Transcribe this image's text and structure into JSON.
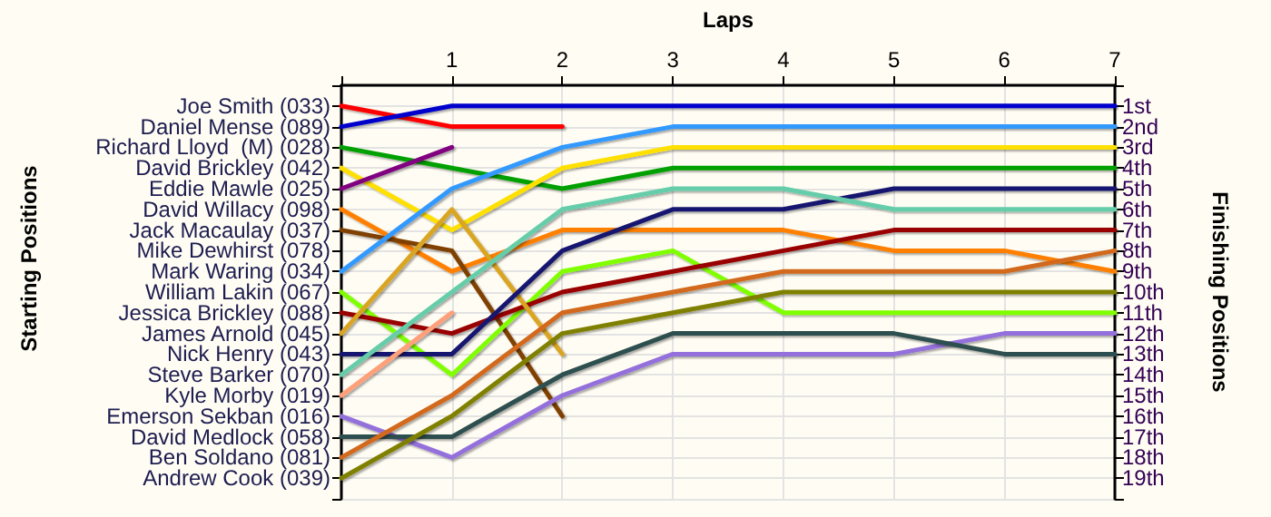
{
  "chart_data": {
    "type": "line",
    "xlabel": "Laps",
    "annotations": [
      "Starting Positions"
    ],
    "y2label": "Finishing Positions",
    "x": [
      0,
      1,
      2,
      3,
      4,
      5,
      6,
      7
    ],
    "xlim": [
      0,
      7
    ],
    "xticks": [
      {
        "value": 0,
        "label": null
      },
      1,
      2,
      3,
      4,
      5,
      6,
      7
    ],
    "y_categories": [
      "Joe Smith (033)",
      "Daniel Mense (089)",
      "Richard Lloyd  (M) (028)",
      "David Brickley (042)",
      "Eddie Mawle (025)",
      "David Willacy (098)",
      "Jack Macaulay (037)",
      "Mike Dewhirst (078)",
      "Mark Waring (034)",
      "William Lakin (067)",
      "Jessica Brickley (088)",
      "James Arnold (045)",
      "Nick Henry (043)",
      "Steve Barker (070)",
      "Kyle Morby (019)",
      "Emerson Sekban (016)",
      "David Medlock (058)",
      "Ben Soldano (081)",
      "Andrew Cook (039)"
    ],
    "y2lim": [
      20,
      0
    ],
    "y2ticks": [
      {
        "value": 0,
        "label": null
      },
      {
        "value": 1,
        "label": "1st"
      },
      {
        "value": 2,
        "label": "2nd"
      },
      {
        "value": 3,
        "label": "3rd"
      },
      {
        "value": 4,
        "label": "4th"
      },
      {
        "value": 5,
        "label": "5th"
      },
      {
        "value": 6,
        "label": "6th"
      },
      {
        "value": 7,
        "label": "7th"
      },
      {
        "value": 8,
        "label": "8th"
      },
      {
        "value": 9,
        "label": "9th"
      },
      {
        "value": 10,
        "label": "10th"
      },
      {
        "value": 11,
        "label": "11th"
      },
      {
        "value": 12,
        "label": "12th"
      },
      {
        "value": 13,
        "label": "13th"
      },
      {
        "value": 14,
        "label": "14th"
      },
      {
        "value": 15,
        "label": "15th"
      },
      {
        "value": 16,
        "label": "16th"
      },
      {
        "value": 17,
        "label": "17th"
      },
      {
        "value": 18,
        "label": "18th"
      },
      {
        "value": 19,
        "label": "19th"
      },
      {
        "value": 20,
        "label": null
      }
    ],
    "grid": true,
    "marker": "none",
    "line_style": "solid",
    "series": [
      {
        "axis": "y2",
        "color": "#ff0000",
        "values": [
          1,
          2,
          2,
          null,
          null,
          null,
          null,
          null
        ]
      },
      {
        "axis": "y2",
        "color": "#0000cc",
        "values": [
          2,
          1,
          1,
          1,
          1,
          1,
          1,
          1
        ]
      },
      {
        "axis": "y2",
        "color": "#00a000",
        "values": [
          3,
          4,
          5,
          4,
          4,
          4,
          4,
          4
        ]
      },
      {
        "axis": "y2",
        "color": "#ffe000",
        "values": [
          4,
          7,
          4,
          3,
          3,
          3,
          3,
          3
        ]
      },
      {
        "axis": "y2",
        "color": "#800080",
        "values": [
          5,
          3,
          null,
          null,
          null,
          null,
          null,
          null
        ]
      },
      {
        "axis": "y2",
        "color": "#ff8000",
        "values": [
          6,
          9,
          7,
          7,
          7,
          8,
          8,
          9
        ]
      },
      {
        "axis": "y2",
        "color": "#804000",
        "values": [
          7,
          8,
          16,
          null,
          null,
          null,
          null,
          null
        ]
      },
      {
        "axis": "y2",
        "color": "#3399ff",
        "values": [
          9,
          5,
          3,
          2,
          2,
          2,
          2,
          2
        ]
      },
      {
        "axis": "y2",
        "color": "#80ff00",
        "values": [
          10,
          14,
          9,
          8,
          11,
          11,
          11,
          11
        ]
      },
      {
        "axis": "y2",
        "color": "#990000",
        "values": [
          11,
          12,
          10,
          9,
          8,
          7,
          7,
          7
        ]
      },
      {
        "axis": "y2",
        "color": "#daa520",
        "values": [
          12,
          6,
          13,
          null,
          null,
          null,
          null,
          null
        ]
      },
      {
        "axis": "y2",
        "color": "#191970",
        "values": [
          13,
          13,
          8,
          6,
          6,
          5,
          5,
          5
        ]
      },
      {
        "axis": "y2",
        "color": "#66cdaa",
        "values": [
          14,
          10,
          6,
          5,
          5,
          6,
          6,
          6
        ]
      },
      {
        "axis": "y2",
        "color": "#ffa07a",
        "values": [
          15,
          11,
          null,
          null,
          null,
          null,
          null,
          null
        ]
      },
      {
        "axis": "y2",
        "color": "#9370db",
        "values": [
          16,
          18,
          15,
          13,
          13,
          13,
          12,
          12
        ]
      },
      {
        "axis": "y2",
        "color": "#2f4f4f",
        "values": [
          17,
          17,
          14,
          12,
          12,
          12,
          13,
          13
        ]
      },
      {
        "axis": "y2",
        "color": "#d2691e",
        "values": [
          18,
          15,
          11,
          10,
          9,
          9,
          9,
          8
        ]
      },
      {
        "axis": "y2",
        "color": "#808000",
        "values": [
          19,
          16,
          12,
          11,
          10,
          10,
          10,
          10
        ]
      }
    ]
  }
}
